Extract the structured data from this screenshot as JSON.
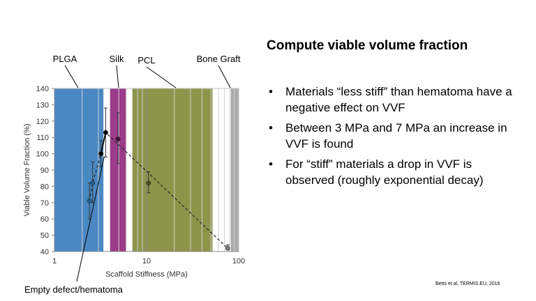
{
  "slide": {
    "title": "Compute viable volume fraction",
    "bullets": [
      "Materials “less stiff” than hematoma have a negative effect on VVF",
      "Between 3 MPa and 7 MPa an increase in VVF is found",
      "For “stiff” materials a drop in VVF is observed (roughly exponential decay)"
    ],
    "bullet_glyph": "•",
    "citation": "Betts et al, TERMIS.EU, 2016"
  },
  "chart_data": {
    "type": "scatter",
    "xlabel": "Scaffold Stiffness (MPa)",
    "ylabel": "Viable Volume Fraction (%)",
    "xscale": "log",
    "xlim": [
      1,
      100
    ],
    "ylim": [
      40,
      140
    ],
    "x_ticks": [
      {
        "value": 1,
        "label": "1"
      },
      {
        "value": 10,
        "label": "10"
      },
      {
        "value": 100,
        "label": "100"
      }
    ],
    "y_ticks": [
      40,
      50,
      60,
      70,
      80,
      90,
      100,
      110,
      120,
      130,
      140
    ],
    "grid": "minor vertical gridlines",
    "bands": [
      {
        "label": "PLGA",
        "x_start": 1,
        "x_end": 3.4,
        "color": "#4a88c3"
      },
      {
        "label": "Silk",
        "x_start": 4.0,
        "x_end": 6.0,
        "color": "#9c3b8a"
      },
      {
        "label": "PCL",
        "x_start": 7.0,
        "x_end": 52,
        "color": "#8d954a"
      },
      {
        "label": "Bone Graft",
        "x_start": 82,
        "x_end": 100,
        "color": "#ababab"
      }
    ],
    "annotations": [
      "PLGA",
      "Silk",
      "PCL",
      "Bone Graft",
      "Empty defect/hematoma"
    ],
    "points": [
      {
        "x": 2.4,
        "y": 71,
        "err_low": 60,
        "err_high": 82,
        "color": "#1f5c8a",
        "group": "PLGA"
      },
      {
        "x": 2.6,
        "y": 82,
        "err_low": 70,
        "err_high": 95,
        "color": "#1f5c8a",
        "group": "PLGA"
      },
      {
        "x": 3.2,
        "y": 100,
        "err_low": 92,
        "err_high": 108,
        "color": "#000000",
        "group": "PLGA"
      },
      {
        "x": 3.6,
        "y": 113,
        "err_low": 98,
        "err_high": 128,
        "color": "#000000",
        "group": "Empty defect/hematoma"
      },
      {
        "x": 4.9,
        "y": 109,
        "err_low": 94,
        "err_high": 125,
        "color": "#4a1040",
        "group": "Silk"
      },
      {
        "x": 10.5,
        "y": 82,
        "err_low": 76,
        "err_high": 89,
        "color": "#4b5020",
        "group": "PCL"
      },
      {
        "x": 76,
        "y": 42,
        "err_low": 41,
        "err_high": 44,
        "color": "#7a7a7a",
        "group": "Bone Graft"
      }
    ],
    "dashed_line": [
      {
        "x": 2.4,
        "y": 71
      },
      {
        "x": 2.6,
        "y": 82
      },
      {
        "x": 3.2,
        "y": 100
      },
      {
        "x": 3.6,
        "y": 113
      },
      {
        "x": 76,
        "y": 42
      }
    ],
    "solid_line": [
      {
        "x": 3.2,
        "y": 100
      },
      {
        "x": 3.6,
        "y": 113
      }
    ]
  }
}
